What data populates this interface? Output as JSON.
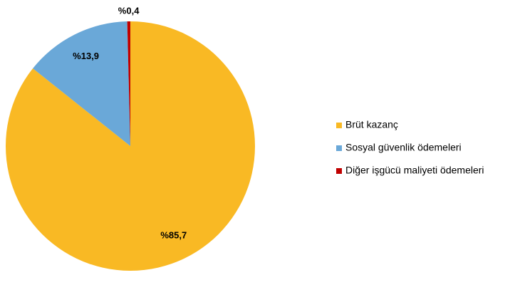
{
  "chart_data": {
    "type": "pie",
    "categories": [
      "Brüt kazanç",
      "Sosyal güvenlik ödemeleri",
      "Diğer işgücü maliyeti ödemeleri"
    ],
    "values": [
      85.7,
      13.9,
      0.4
    ],
    "value_labels": [
      "%85,7",
      "%13,9",
      "%0,4"
    ],
    "colors": [
      "#F9B924",
      "#6AA8D8",
      "#C00000"
    ],
    "legend": "right"
  }
}
